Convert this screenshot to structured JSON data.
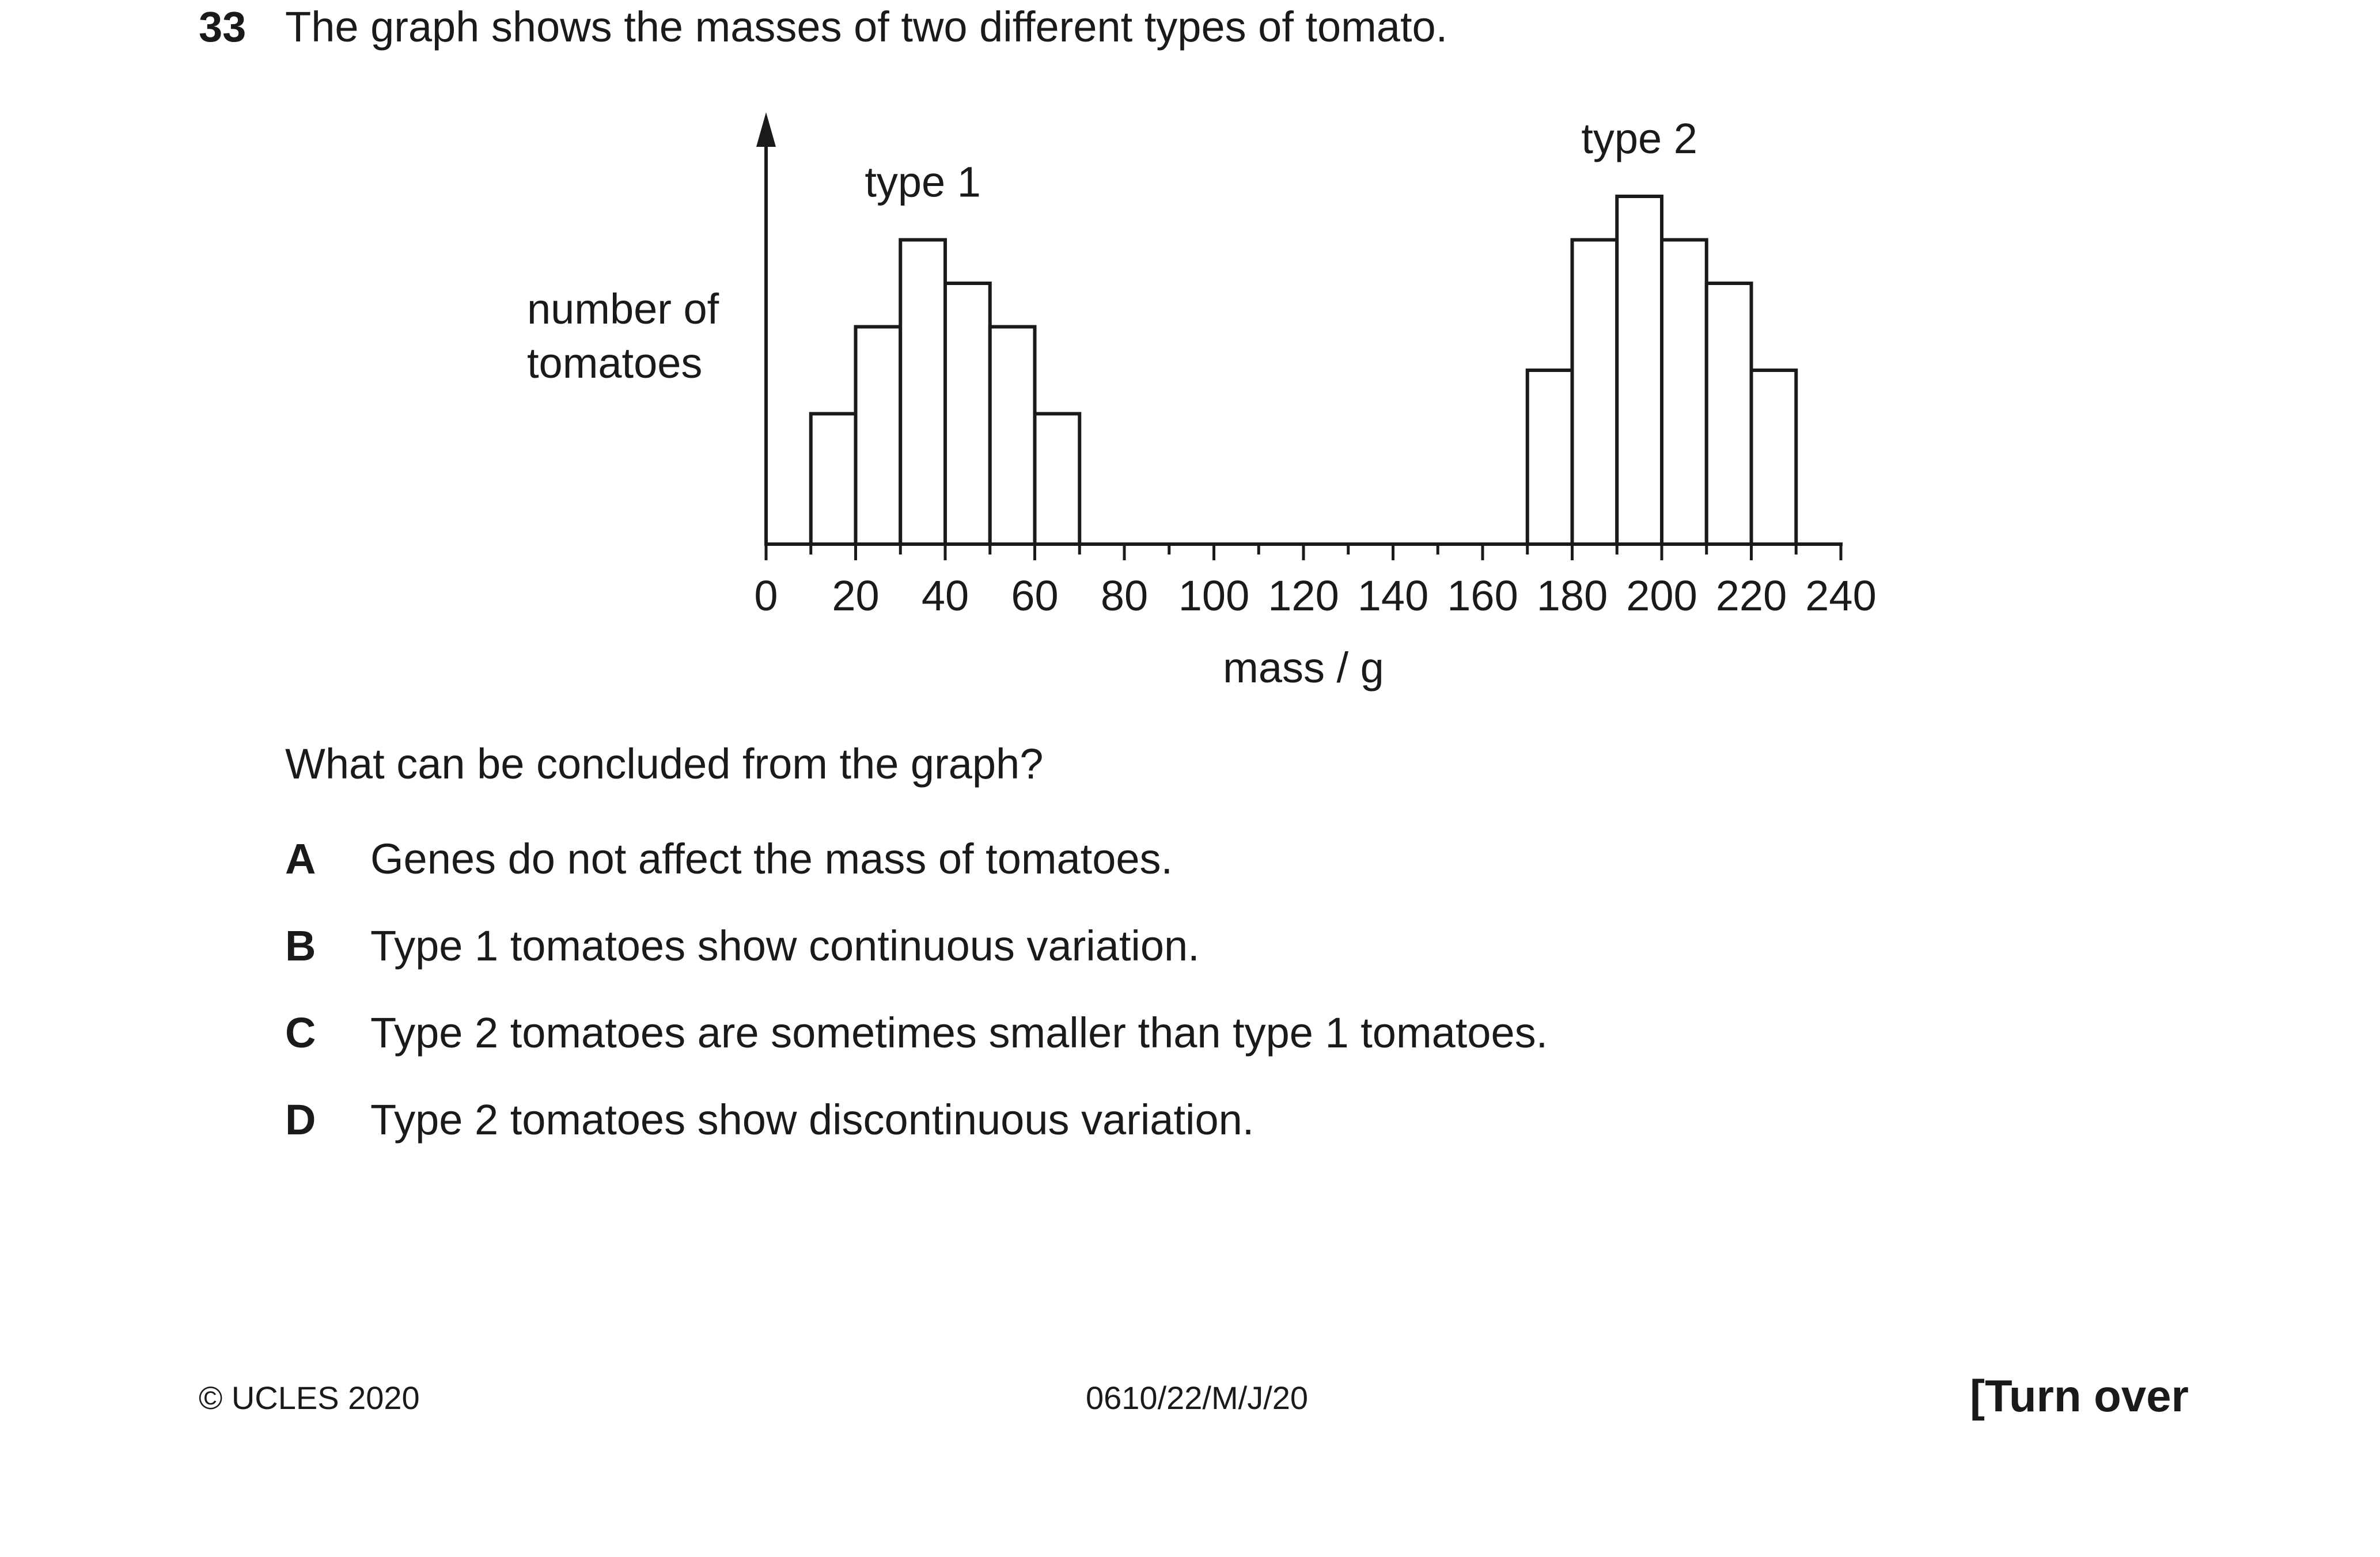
{
  "question": {
    "number": "33",
    "text": "The graph shows the masses of two different types of tomato."
  },
  "chart_data": {
    "type": "bar",
    "xlabel": "mass / g",
    "ylabel": [
      "number of",
      "tomatoes"
    ],
    "xlim": [
      0,
      240
    ],
    "x_ticks": [
      "0",
      "20",
      "40",
      "60",
      "80",
      "100",
      "120",
      "140",
      "160",
      "180",
      "200",
      "220",
      "240"
    ],
    "bin_width": 10,
    "series": [
      {
        "name": "type 1",
        "bins": [
          {
            "x0": 10,
            "x1": 20,
            "value": 3.0
          },
          {
            "x0": 20,
            "x1": 30,
            "value": 5.0
          },
          {
            "x0": 30,
            "x1": 40,
            "value": 7.0
          },
          {
            "x0": 40,
            "x1": 50,
            "value": 6.0
          },
          {
            "x0": 50,
            "x1": 60,
            "value": 5.0
          },
          {
            "x0": 60,
            "x1": 70,
            "value": 3.0
          }
        ]
      },
      {
        "name": "type 2",
        "bins": [
          {
            "x0": 170,
            "x1": 180,
            "value": 4.0
          },
          {
            "x0": 180,
            "x1": 190,
            "value": 7.0
          },
          {
            "x0": 190,
            "x1": 200,
            "value": 8.0
          },
          {
            "x0": 200,
            "x1": 210,
            "value": 7.0
          },
          {
            "x0": 210,
            "x1": 220,
            "value": 6.0
          },
          {
            "x0": 220,
            "x1": 230,
            "value": 4.0
          }
        ]
      }
    ],
    "y_max": 9,
    "y_ticks_shown": false,
    "grid": false
  },
  "prompt": "What can be concluded from the graph?",
  "options": [
    {
      "letter": "A",
      "text": "Genes do not affect the mass of tomatoes."
    },
    {
      "letter": "B",
      "text": "Type 1 tomatoes show continuous variation."
    },
    {
      "letter": "C",
      "text": "Type 2 tomatoes are sometimes smaller than type 1 tomatoes."
    },
    {
      "letter": "D",
      "text": "Type 2 tomatoes show discontinuous variation."
    }
  ],
  "footer": {
    "left": "© UCLES 2020",
    "center": "0610/22/M/J/20",
    "right": "[Turn over"
  }
}
